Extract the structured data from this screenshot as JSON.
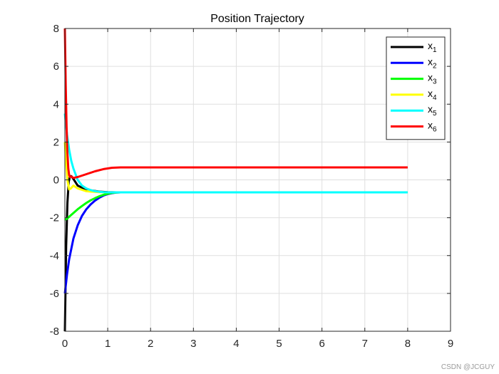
{
  "chart_data": {
    "type": "line",
    "title": "Position Trajectory",
    "xlabel": "",
    "ylabel": "",
    "xlim": [
      0,
      9
    ],
    "ylim": [
      -8,
      8
    ],
    "xticks": [
      0,
      1,
      2,
      3,
      4,
      5,
      6,
      7,
      8,
      9
    ],
    "yticks": [
      -8,
      -6,
      -4,
      -2,
      0,
      2,
      4,
      6,
      8
    ],
    "grid": true,
    "legend_position": "top-right",
    "series": [
      {
        "name": "x",
        "sub": "1",
        "color": "#000000",
        "x": [
          0,
          0.03,
          0.06,
          0.09,
          0.12,
          0.15,
          0.2,
          0.3,
          0.5,
          0.8,
          1.0,
          1.2,
          1.3,
          2,
          4,
          6,
          8
        ],
        "y": [
          -8,
          -3.5,
          -1.2,
          -0.1,
          0.2,
          0.2,
          0.05,
          -0.3,
          -0.52,
          -0.62,
          -0.65,
          -0.66,
          -0.66,
          -0.66,
          -0.66,
          -0.66,
          -0.66
        ]
      },
      {
        "name": "x",
        "sub": "2",
        "color": "#0000ff",
        "x": [
          0,
          0.05,
          0.1,
          0.2,
          0.3,
          0.4,
          0.5,
          0.6,
          0.7,
          0.8,
          0.9,
          1.0,
          1.1,
          1.2,
          1.3,
          2,
          4,
          6,
          8
        ],
        "y": [
          -6,
          -5.0,
          -4.2,
          -3.1,
          -2.4,
          -1.9,
          -1.55,
          -1.3,
          -1.1,
          -0.95,
          -0.83,
          -0.75,
          -0.7,
          -0.67,
          -0.66,
          -0.66,
          -0.66,
          -0.66,
          -0.66
        ]
      },
      {
        "name": "x",
        "sub": "3",
        "color": "#00ff00",
        "x": [
          0,
          0.05,
          0.1,
          0.2,
          0.3,
          0.4,
          0.5,
          0.6,
          0.7,
          0.8,
          0.9,
          1.0,
          1.1,
          1.2,
          1.3,
          2,
          4,
          6,
          8
        ],
        "y": [
          -2.1,
          -2.05,
          -1.95,
          -1.75,
          -1.55,
          -1.38,
          -1.22,
          -1.08,
          -0.97,
          -0.87,
          -0.79,
          -0.73,
          -0.69,
          -0.67,
          -0.66,
          -0.66,
          -0.66,
          -0.66,
          -0.66
        ]
      },
      {
        "name": "x",
        "sub": "4",
        "color": "#ffff00",
        "x": [
          0,
          0.03,
          0.06,
          0.1,
          0.14,
          0.2,
          0.3,
          0.5,
          0.8,
          1.0,
          1.3,
          2,
          4,
          6,
          8
        ],
        "y": [
          2,
          0.9,
          0.0,
          -0.5,
          -0.45,
          -0.3,
          -0.45,
          -0.6,
          -0.65,
          -0.66,
          -0.66,
          -0.66,
          -0.66,
          -0.66,
          -0.66
        ]
      },
      {
        "name": "x",
        "sub": "5",
        "color": "#00ffff",
        "x": [
          0,
          0.05,
          0.1,
          0.15,
          0.2,
          0.3,
          0.4,
          0.5,
          0.6,
          0.7,
          0.8,
          0.9,
          1.0,
          1.1,
          1.2,
          1.3,
          2,
          4,
          6,
          8
        ],
        "y": [
          3.5,
          2.4,
          1.6,
          1.0,
          0.6,
          0.0,
          -0.3,
          -0.45,
          -0.54,
          -0.6,
          -0.63,
          -0.65,
          -0.66,
          -0.66,
          -0.66,
          -0.66,
          -0.66,
          -0.66,
          -0.66,
          -0.66
        ]
      },
      {
        "name": "x",
        "sub": "6",
        "color": "#ff0000",
        "x": [
          0,
          0.02,
          0.04,
          0.06,
          0.08,
          0.1,
          0.12,
          0.15,
          0.2,
          0.3,
          0.5,
          0.7,
          0.9,
          1.1,
          1.3,
          2,
          4,
          6,
          8
        ],
        "y": [
          8,
          5,
          2.8,
          1.4,
          0.6,
          0.25,
          0.15,
          0.18,
          0.1,
          0.15,
          0.3,
          0.45,
          0.57,
          0.64,
          0.66,
          0.66,
          0.66,
          0.66,
          0.66
        ]
      }
    ]
  },
  "watermark": "CSDN @JCGUY"
}
